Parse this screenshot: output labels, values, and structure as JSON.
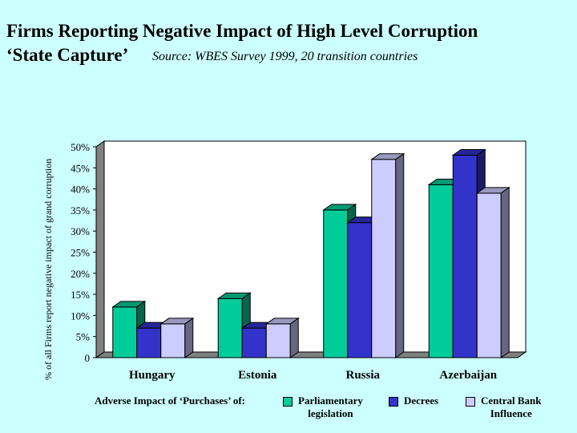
{
  "title_line1": "Firms Reporting Negative Impact of High Level Corruption",
  "title_line2": "‘State Capture’",
  "source": "Source: WBES Survey 1999, 20 transition countries",
  "legend_title": "Adverse Impact of ‘Purchases’ of:",
  "colors": {
    "Parliamentary legislation": "#00cc99",
    "Decrees": "#3333cc",
    "Central Bank Influence": "#ccccff"
  },
  "legend_lines": {
    "Parliamentary legislation": [
      "Parliamentary",
      "legislation"
    ],
    "Decrees": [
      "Decrees"
    ],
    "Central Bank Influence": [
      "Central Bank",
      "Influence"
    ]
  },
  "chart_data": {
    "type": "bar",
    "title": "Firms Reporting Negative Impact of High Level Corruption ‘State Capture’",
    "ylabel": "% of all Firms report negative impact of grand corruption",
    "xlabel": "",
    "categories": [
      "Hungary",
      "Estonia",
      "Russia",
      "Azerbaijan"
    ],
    "series": [
      {
        "name": "Parliamentary legislation",
        "values": [
          12,
          14,
          35,
          41
        ]
      },
      {
        "name": "Decrees",
        "values": [
          7,
          7,
          32,
          48
        ]
      },
      {
        "name": "Central Bank Influence",
        "values": [
          8,
          8,
          47,
          39
        ]
      }
    ],
    "ylim": [
      0,
      50
    ],
    "yticks": [
      "0",
      "5%",
      "10%",
      "15%",
      "20%",
      "25%",
      "30%",
      "35%",
      "40%",
      "45%",
      "50%"
    ],
    "grid": false,
    "legend": "bottom",
    "style": "3d"
  }
}
